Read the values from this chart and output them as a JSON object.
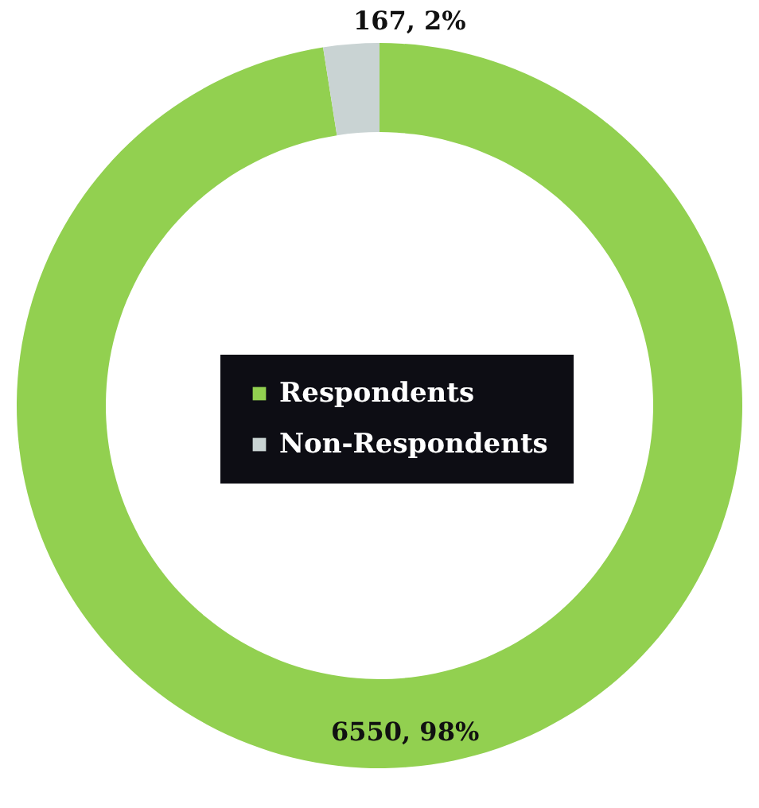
{
  "chart_data": {
    "type": "donut",
    "categories": [
      "Respondents",
      "Non-Respondents"
    ],
    "values": [
      6550,
      167
    ],
    "colors": [
      "#92d050",
      "#c9d3d3"
    ],
    "value_labels": [
      "6550, 98%",
      "167, 2%"
    ],
    "legend": "center"
  }
}
